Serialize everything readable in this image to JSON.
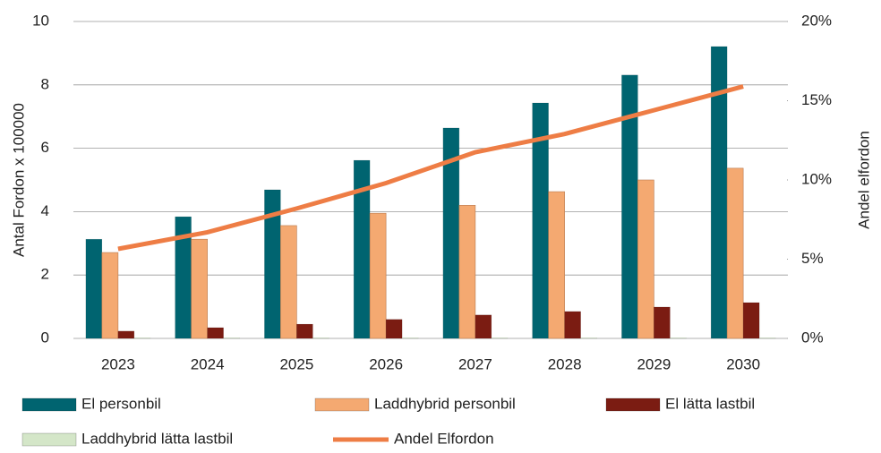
{
  "chart_data": {
    "type": "bar",
    "categories": [
      "2023",
      "2024",
      "2025",
      "2026",
      "2027",
      "2028",
      "2029",
      "2030"
    ],
    "series": [
      {
        "name": "El personbil",
        "color": "#006470",
        "values": [
          3.13,
          3.84,
          4.69,
          5.62,
          6.64,
          7.43,
          8.31,
          9.21
        ]
      },
      {
        "name": "Laddhybrid personbil",
        "color": "#f4a971",
        "values": [
          2.71,
          3.13,
          3.56,
          3.95,
          4.2,
          4.63,
          5.0,
          5.37
        ]
      },
      {
        "name": "El lätta lastbil",
        "color": "#7b1c12",
        "values": [
          0.23,
          0.34,
          0.45,
          0.6,
          0.74,
          0.85,
          0.99,
          1.13
        ]
      },
      {
        "name": "Laddhybrid lätta lastbil",
        "color": "#d4e6c8",
        "values": [
          0.02,
          0.02,
          0.02,
          0.02,
          0.02,
          0.02,
          0.02,
          0.02
        ]
      },
      {
        "name": "Andel Elfordon",
        "color": "#ee7d45",
        "type": "line",
        "axis": "y2",
        "values": [
          5.65,
          6.7,
          8.2,
          9.8,
          11.75,
          12.9,
          14.4,
          15.9
        ]
      }
    ],
    "ylabel": "Antal Fordon  x 100000",
    "y2label": "Andel elfordon",
    "ylim": [
      0,
      10
    ],
    "yticks": [
      0,
      2,
      4,
      6,
      8,
      10
    ],
    "y2lim": [
      0,
      20
    ],
    "y2ticks": [
      {
        "value": 0,
        "label": "0%"
      },
      {
        "value": 5,
        "label": "5%"
      },
      {
        "value": 10,
        "label": "10%"
      },
      {
        "value": 15,
        "label": "15%"
      },
      {
        "value": 20,
        "label": "20%"
      }
    ],
    "grid": true,
    "legend": "bottom"
  }
}
